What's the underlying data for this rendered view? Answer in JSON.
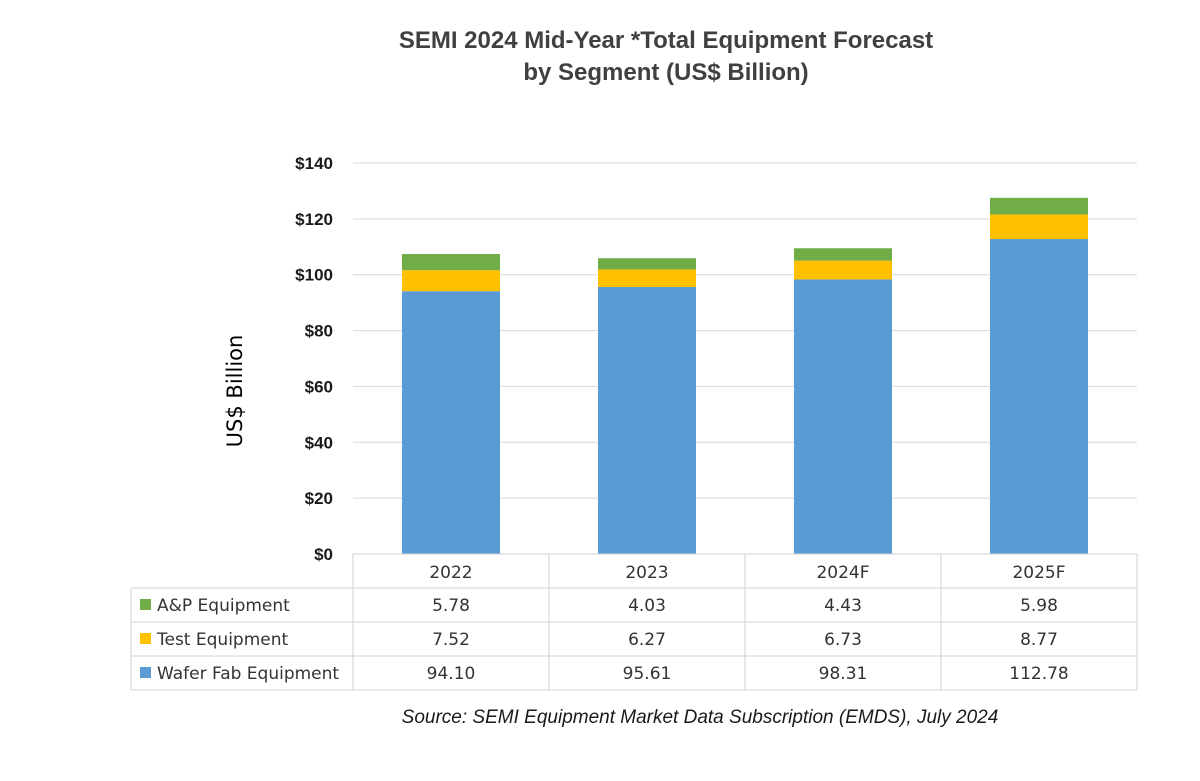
{
  "chart_data": {
    "type": "bar",
    "stacked": true,
    "title": "SEMI 2024 Mid-Year *Total Equipment Forecast",
    "subtitle": "by Segment (US$ Billion)",
    "ylabel": "US$ Billion",
    "ylim": [
      0,
      140
    ],
    "yticks": [
      "$0",
      "$20",
      "$40",
      "$60",
      "$80",
      "$100",
      "$120",
      "$140"
    ],
    "grid": true,
    "categories": [
      "2022",
      "2023",
      "2024F",
      "2025F"
    ],
    "series": [
      {
        "name": "Wafer Fab Equipment",
        "color": "#5B9BD5",
        "values": [
          94.1,
          95.61,
          98.31,
          112.78
        ],
        "labels": [
          "94.10",
          "95.61",
          "98.31",
          "112.78"
        ]
      },
      {
        "name": "Test Equipment",
        "color": "#FFC000",
        "values": [
          7.52,
          6.27,
          6.73,
          8.77
        ],
        "labels": [
          "7.52",
          "6.27",
          "6.73",
          "8.77"
        ]
      },
      {
        "name": "A&P Equipment",
        "color": "#70AD47",
        "values": [
          5.78,
          4.03,
          4.43,
          5.98
        ],
        "labels": [
          "5.78",
          "4.03",
          "4.43",
          "5.98"
        ]
      }
    ],
    "source": "Source: SEMI Equipment Market Data Subscription (EMDS), July 2024"
  }
}
